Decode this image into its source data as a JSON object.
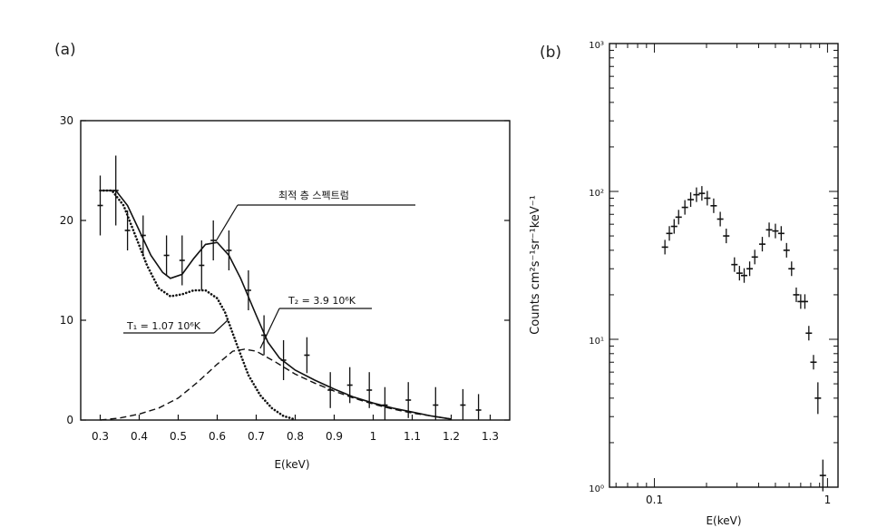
{
  "chart_data": [
    {
      "panel": "(a)",
      "type": "line",
      "xlabel": "E(keV)",
      "ylabel": "",
      "xlim": [
        0.25,
        1.35
      ],
      "ylim": [
        0,
        30
      ],
      "x_ticks": [
        "0.3",
        "0.4",
        "0.5",
        "0.6",
        "0.7",
        "0.8",
        "0.9",
        "1",
        "1.1",
        "1.2",
        "1.3"
      ],
      "y_ticks": [
        "0",
        "10",
        "20",
        "30"
      ],
      "annotations": {
        "total": "최적 층 스펙트럼",
        "t1": "T₁ = 1.07 10⁶K",
        "t2": "T₂ = 3.9 10⁶K"
      },
      "data_points": [
        {
          "x": 0.3,
          "y": 21.5,
          "err": 3.0
        },
        {
          "x": 0.34,
          "y": 23.0,
          "err": 3.5
        },
        {
          "x": 0.37,
          "y": 19.0,
          "err": 2.0
        },
        {
          "x": 0.41,
          "y": 18.5,
          "err": 2.0
        },
        {
          "x": 0.47,
          "y": 16.5,
          "err": 2.0
        },
        {
          "x": 0.51,
          "y": 16.0,
          "err": 2.5
        },
        {
          "x": 0.56,
          "y": 15.5,
          "err": 2.5
        },
        {
          "x": 0.59,
          "y": 18.0,
          "err": 2.0
        },
        {
          "x": 0.63,
          "y": 17.0,
          "err": 2.0
        },
        {
          "x": 0.68,
          "y": 13.0,
          "err": 2.0
        },
        {
          "x": 0.72,
          "y": 8.5,
          "err": 2.0
        },
        {
          "x": 0.77,
          "y": 6.0,
          "err": 2.0
        },
        {
          "x": 0.83,
          "y": 6.5,
          "err": 1.8
        },
        {
          "x": 0.89,
          "y": 3.0,
          "err": 1.8
        },
        {
          "x": 0.94,
          "y": 3.5,
          "err": 1.8
        },
        {
          "x": 0.99,
          "y": 3.0,
          "err": 1.8
        },
        {
          "x": 1.03,
          "y": 1.5,
          "err": 1.8
        },
        {
          "x": 1.09,
          "y": 2.0,
          "err": 1.8
        },
        {
          "x": 1.16,
          "y": 1.5,
          "err": 1.8
        },
        {
          "x": 1.23,
          "y": 1.5,
          "err": 1.6
        },
        {
          "x": 1.27,
          "y": 1.0,
          "err": 1.6
        }
      ],
      "series": [
        {
          "name": "total fit",
          "style": "solid",
          "x": [
            0.3,
            0.34,
            0.37,
            0.4,
            0.43,
            0.46,
            0.48,
            0.51,
            0.54,
            0.57,
            0.6,
            0.63,
            0.66,
            0.7,
            0.73,
            0.76,
            0.8,
            0.85,
            0.9,
            0.95,
            1.0,
            1.05,
            1.1,
            1.15,
            1.2
          ],
          "y": [
            23,
            23,
            21.5,
            19,
            16.5,
            14.8,
            14.2,
            14.6,
            16.2,
            17.6,
            17.8,
            16.5,
            14.2,
            10.5,
            7.8,
            6.2,
            5.0,
            4.0,
            3.1,
            2.3,
            1.7,
            1.2,
            0.8,
            0.4,
            0.1
          ]
        },
        {
          "name": "T1 component",
          "style": "dotted",
          "x": [
            0.3,
            0.33,
            0.36,
            0.39,
            0.42,
            0.45,
            0.48,
            0.51,
            0.54,
            0.57,
            0.6,
            0.62,
            0.65,
            0.68,
            0.71,
            0.74,
            0.77,
            0.8
          ],
          "y": [
            23,
            23,
            21.5,
            18.5,
            15.5,
            13.2,
            12.4,
            12.6,
            13.0,
            13.0,
            12.2,
            10.8,
            7.6,
            4.5,
            2.5,
            1.2,
            0.4,
            0.05
          ]
        },
        {
          "name": "T2 component",
          "style": "dashed",
          "x": [
            0.3,
            0.35,
            0.4,
            0.45,
            0.5,
            0.55,
            0.6,
            0.64,
            0.67,
            0.7,
            0.75,
            0.8,
            0.85,
            0.9,
            0.95,
            1.0,
            1.05,
            1.1,
            1.15,
            1.2
          ],
          "y": [
            0,
            0.2,
            0.6,
            1.2,
            2.2,
            3.8,
            5.6,
            6.9,
            7.1,
            6.9,
            5.8,
            4.6,
            3.7,
            2.9,
            2.2,
            1.6,
            1.1,
            0.7,
            0.4,
            0.1
          ]
        }
      ]
    },
    {
      "panel": "(b)",
      "type": "scatter",
      "xscale": "log",
      "yscale": "log",
      "xlabel": "E(keV)",
      "ylabel": "Counts cm²s⁻¹sr⁻¹keV⁻¹",
      "xlim": [
        0.055,
        1.15
      ],
      "ylim": [
        1,
        1000
      ],
      "x_ticks": [
        "0.1",
        "1"
      ],
      "y_ticks": [
        "10⁰",
        "10¹",
        "10²",
        "10³"
      ],
      "data_points": [
        {
          "x": 0.115,
          "y": 42
        },
        {
          "x": 0.122,
          "y": 52
        },
        {
          "x": 0.13,
          "y": 58
        },
        {
          "x": 0.138,
          "y": 67
        },
        {
          "x": 0.15,
          "y": 78
        },
        {
          "x": 0.162,
          "y": 88
        },
        {
          "x": 0.175,
          "y": 95
        },
        {
          "x": 0.188,
          "y": 97
        },
        {
          "x": 0.202,
          "y": 90
        },
        {
          "x": 0.22,
          "y": 80
        },
        {
          "x": 0.24,
          "y": 65
        },
        {
          "x": 0.26,
          "y": 50
        },
        {
          "x": 0.29,
          "y": 32
        },
        {
          "x": 0.31,
          "y": 28
        },
        {
          "x": 0.33,
          "y": 27
        },
        {
          "x": 0.355,
          "y": 30
        },
        {
          "x": 0.38,
          "y": 36
        },
        {
          "x": 0.42,
          "y": 44
        },
        {
          "x": 0.46,
          "y": 55
        },
        {
          "x": 0.5,
          "y": 54
        },
        {
          "x": 0.54,
          "y": 52
        },
        {
          "x": 0.58,
          "y": 40
        },
        {
          "x": 0.62,
          "y": 30
        },
        {
          "x": 0.66,
          "y": 20
        },
        {
          "x": 0.7,
          "y": 18
        },
        {
          "x": 0.74,
          "y": 18
        },
        {
          "x": 0.78,
          "y": 11
        },
        {
          "x": 0.83,
          "y": 7
        },
        {
          "x": 0.88,
          "y": 4
        },
        {
          "x": 0.94,
          "y": 1.2
        }
      ]
    }
  ],
  "colors": {
    "ink": "#111111",
    "background": "#ffffff"
  }
}
